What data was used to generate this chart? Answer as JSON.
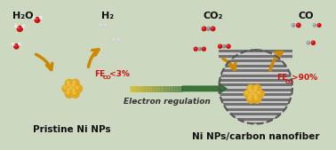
{
  "bg_color": "#cdd8c0",
  "left_label": "Pristine Ni NPs",
  "right_label": "Ni NPs/carbon nanofiber",
  "arrow_label": "Electron regulation",
  "mol_h2o": "H₂O",
  "mol_h2": "H₂",
  "mol_co2": "CO₂",
  "mol_co": "CO",
  "gold_color": "#c8900a",
  "gold_light": "#f0c84a",
  "gold_mid": "#e0a820",
  "red_color": "#cc1111",
  "gray_mol": "#aaaaaa",
  "white_mol": "#e0e0e0",
  "arrow_color": "#cc8800",
  "main_arrow_color": "#2d6a2d",
  "fe_color": "#cc1111",
  "fiber_dark": "#707070",
  "fiber_light": "#c8c8c8",
  "fiber_bg": "#e0e0e0"
}
